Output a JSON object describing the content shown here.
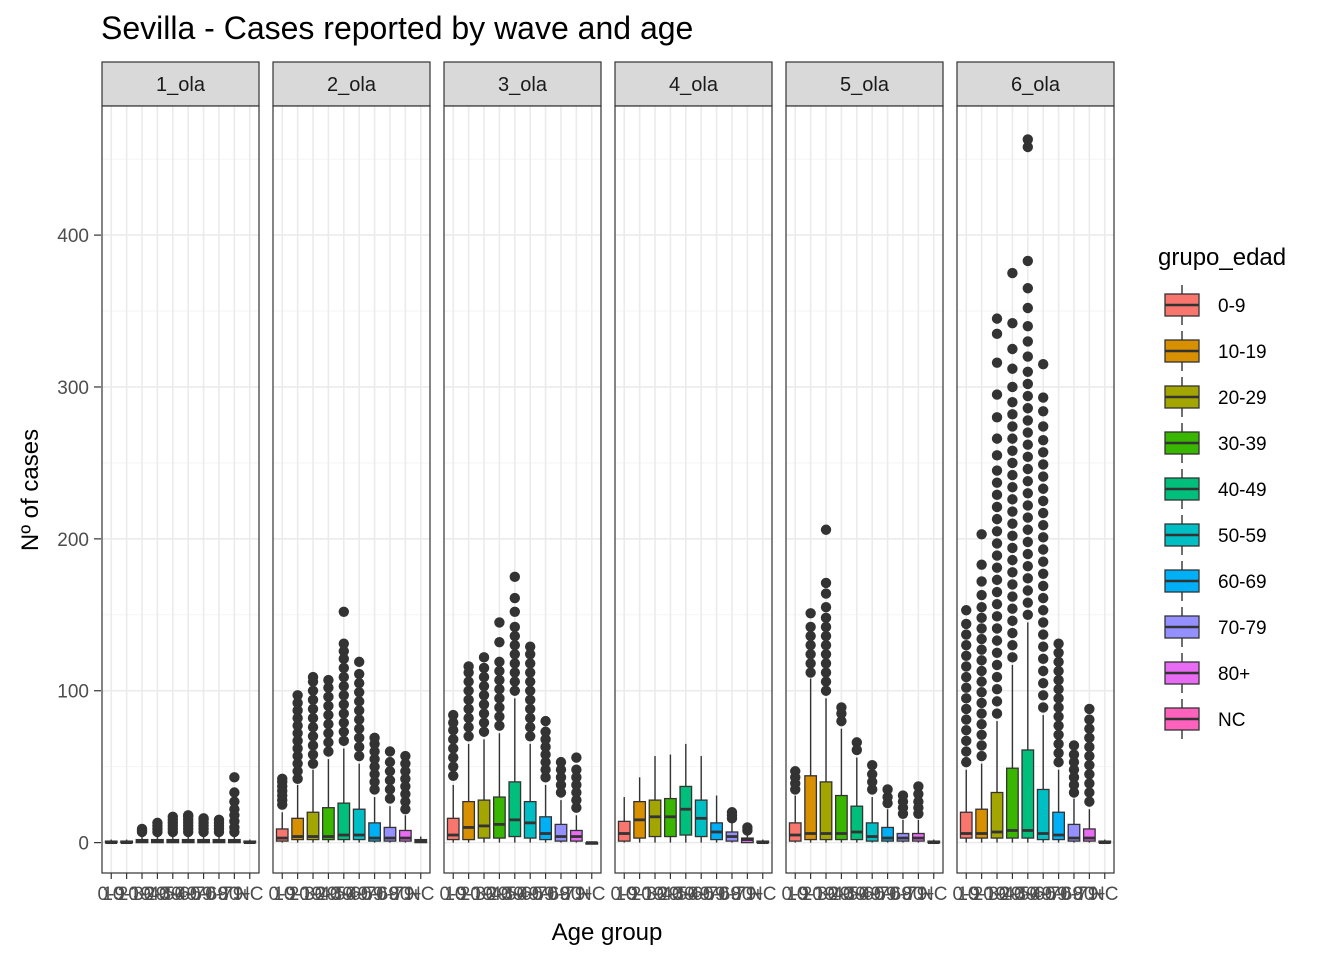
{
  "chart_data": {
    "type": "boxplot",
    "title": "Sevilla - Cases reported by wave and age",
    "xlabel": "Age group",
    "ylabel": "Nº of cases",
    "ylim": [
      -20,
      485
    ],
    "yticks": [
      0,
      100,
      200,
      300,
      400
    ],
    "grid": true,
    "legend_title": "grupo_edad",
    "legend_position": "right",
    "categories": [
      "0-9",
      "10-19",
      "20-29",
      "30-39",
      "40-49",
      "50-59",
      "60-69",
      "70-79",
      "80+",
      "NC"
    ],
    "colors": [
      "#F8766D",
      "#D89000",
      "#A3A500",
      "#39B600",
      "#00BF7D",
      "#00BFC4",
      "#00B0F6",
      "#9590FF",
      "#E76BF3",
      "#FF62BC"
    ],
    "panels": [
      {
        "name": "1_ola",
        "boxes": [
          {
            "q1": 0,
            "med": 0,
            "q3": 1,
            "whisk_lo": 0,
            "whisk_hi": 2,
            "outliers": []
          },
          {
            "q1": 0,
            "med": 0,
            "q3": 1,
            "whisk_lo": 0,
            "whisk_hi": 2,
            "outliers": []
          },
          {
            "q1": 0,
            "med": 1,
            "q3": 2,
            "whisk_lo": 0,
            "whisk_hi": 5,
            "outliers": [
              7,
              8,
              9
            ]
          },
          {
            "q1": 0,
            "med": 1,
            "q3": 2,
            "whisk_lo": 0,
            "whisk_hi": 5,
            "outliers": [
              7,
              9,
              11,
              13
            ]
          },
          {
            "q1": 0,
            "med": 1,
            "q3": 2,
            "whisk_lo": 0,
            "whisk_hi": 5,
            "outliers": [
              7,
              9,
              11,
              13,
              15,
              17
            ]
          },
          {
            "q1": 0,
            "med": 1,
            "q3": 2,
            "whisk_lo": 0,
            "whisk_hi": 5,
            "outliers": [
              7,
              9,
              11,
              13,
              15,
              17,
              18
            ]
          },
          {
            "q1": 0,
            "med": 1,
            "q3": 2,
            "whisk_lo": 0,
            "whisk_hi": 5,
            "outliers": [
              7,
              9,
              11,
              13,
              15,
              16
            ]
          },
          {
            "q1": 0,
            "med": 1,
            "q3": 2,
            "whisk_lo": 0,
            "whisk_hi": 5,
            "outliers": [
              7,
              9,
              11,
              13,
              15
            ]
          },
          {
            "q1": 0,
            "med": 1,
            "q3": 2,
            "whisk_lo": 0,
            "whisk_hi": 5,
            "outliers": [
              7,
              10,
              14,
              18,
              22,
              27,
              33,
              43
            ]
          },
          {
            "q1": 0,
            "med": 0,
            "q3": 1,
            "whisk_lo": 0,
            "whisk_hi": 2,
            "outliers": []
          }
        ]
      },
      {
        "name": "2_ola",
        "boxes": [
          {
            "q1": 1,
            "med": 3,
            "q3": 9,
            "whisk_lo": 0,
            "whisk_hi": 20,
            "outliers": [
              25,
              28,
              31,
              34,
              37,
              40,
              42
            ]
          },
          {
            "q1": 2,
            "med": 4,
            "q3": 16,
            "whisk_lo": 0,
            "whisk_hi": 38,
            "outliers": [
              42,
              47,
              52,
              57,
              62,
              67,
              72,
              77,
              82,
              87,
              92,
              97
            ]
          },
          {
            "q1": 2,
            "med": 4,
            "q3": 20,
            "whisk_lo": 0,
            "whisk_hi": 48,
            "outliers": [
              52,
              58,
              64,
              70,
              76,
              82,
              88,
              94,
              100,
              106,
              109
            ]
          },
          {
            "q1": 2,
            "med": 4,
            "q3": 23,
            "whisk_lo": 0,
            "whisk_hi": 55,
            "outliers": [
              60,
              66,
              72,
              78,
              84,
              90,
              96,
              102,
              107
            ]
          },
          {
            "q1": 2,
            "med": 5,
            "q3": 26,
            "whisk_lo": 0,
            "whisk_hi": 62,
            "outliers": [
              67,
              73,
              79,
              85,
              91,
              97,
              103,
              109,
              115,
              121,
              126,
              131,
              152
            ]
          },
          {
            "q1": 2,
            "med": 5,
            "q3": 22,
            "whisk_lo": 0,
            "whisk_hi": 52,
            "outliers": [
              57,
              63,
              69,
              75,
              81,
              87,
              93,
              99,
              105,
              111,
              119
            ]
          },
          {
            "q1": 1,
            "med": 3,
            "q3": 13,
            "whisk_lo": 0,
            "whisk_hi": 30,
            "outliers": [
              35,
              40,
              45,
              50,
              55,
              60,
              65,
              69
            ]
          },
          {
            "q1": 1,
            "med": 3,
            "q3": 10,
            "whisk_lo": 0,
            "whisk_hi": 24,
            "outliers": [
              29,
              35,
              41,
              47,
              53,
              60
            ]
          },
          {
            "q1": 1,
            "med": 3,
            "q3": 8,
            "whisk_lo": 0,
            "whisk_hi": 18,
            "outliers": [
              22,
              27,
              32,
              37,
              42,
              47,
              52,
              57
            ]
          },
          {
            "q1": 0,
            "med": 1,
            "q3": 2,
            "whisk_lo": 0,
            "whisk_hi": 4,
            "outliers": []
          }
        ]
      },
      {
        "name": "3_ola",
        "boxes": [
          {
            "q1": 2,
            "med": 5,
            "q3": 16,
            "whisk_lo": 0,
            "whisk_hi": 38,
            "outliers": [
              44,
              50,
              56,
              62,
              68,
              74,
              79,
              84
            ]
          },
          {
            "q1": 2,
            "med": 10,
            "q3": 27,
            "whisk_lo": 0,
            "whisk_hi": 65,
            "outliers": [
              70,
              76,
              82,
              88,
              94,
              100,
              106,
              112,
              116
            ]
          },
          {
            "q1": 3,
            "med": 11,
            "q3": 28,
            "whisk_lo": 0,
            "whisk_hi": 68,
            "outliers": [
              73,
              79,
              85,
              91,
              97,
              103,
              109,
              115,
              122
            ]
          },
          {
            "q1": 3,
            "med": 12,
            "q3": 30,
            "whisk_lo": 0,
            "whisk_hi": 72,
            "outliers": [
              77,
              83,
              89,
              95,
              101,
              107,
              113,
              119,
              132,
              145
            ]
          },
          {
            "q1": 4,
            "med": 15,
            "q3": 40,
            "whisk_lo": 0,
            "whisk_hi": 95,
            "outliers": [
              100,
              106,
              112,
              118,
              124,
              130,
              136,
              142,
              152,
              161,
              175
            ]
          },
          {
            "q1": 3,
            "med": 13,
            "q3": 27,
            "whisk_lo": 0,
            "whisk_hi": 65,
            "outliers": [
              70,
              76,
              82,
              88,
              94,
              100,
              106,
              112,
              118,
              124,
              129
            ]
          },
          {
            "q1": 2,
            "med": 6,
            "q3": 17,
            "whisk_lo": 0,
            "whisk_hi": 38,
            "outliers": [
              43,
              48,
              53,
              58,
              63,
              68,
              73,
              80
            ]
          },
          {
            "q1": 1,
            "med": 4,
            "q3": 12,
            "whisk_lo": 0,
            "whisk_hi": 28,
            "outliers": [
              33,
              38,
              43,
              48,
              53
            ]
          },
          {
            "q1": 1,
            "med": 4,
            "q3": 8,
            "whisk_lo": 0,
            "whisk_hi": 18,
            "outliers": [
              23,
              28,
              33,
              38,
              43,
              48,
              56
            ]
          },
          {
            "q1": 0,
            "med": 0,
            "q3": 0,
            "whisk_lo": 0,
            "whisk_hi": 0,
            "outliers": []
          }
        ]
      },
      {
        "name": "4_ola",
        "boxes": [
          {
            "q1": 1,
            "med": 6,
            "q3": 14,
            "whisk_lo": 0,
            "whisk_hi": 30,
            "outliers": []
          },
          {
            "q1": 3,
            "med": 15,
            "q3": 27,
            "whisk_lo": 0,
            "whisk_hi": 43,
            "outliers": []
          },
          {
            "q1": 4,
            "med": 17,
            "q3": 28,
            "whisk_lo": 0,
            "whisk_hi": 57,
            "outliers": []
          },
          {
            "q1": 4,
            "med": 17,
            "q3": 29,
            "whisk_lo": 0,
            "whisk_hi": 58,
            "outliers": []
          },
          {
            "q1": 5,
            "med": 22,
            "q3": 37,
            "whisk_lo": 0,
            "whisk_hi": 65,
            "outliers": []
          },
          {
            "q1": 4,
            "med": 16,
            "q3": 28,
            "whisk_lo": 0,
            "whisk_hi": 57,
            "outliers": []
          },
          {
            "q1": 2,
            "med": 7,
            "q3": 13,
            "whisk_lo": 0,
            "whisk_hi": 31,
            "outliers": []
          },
          {
            "q1": 1,
            "med": 4,
            "q3": 7,
            "whisk_lo": 0,
            "whisk_hi": 14,
            "outliers": [
              16,
              18,
              20
            ]
          },
          {
            "q1": 0,
            "med": 2,
            "q3": 3,
            "whisk_lo": 0,
            "whisk_hi": 6,
            "outliers": [
              8,
              10
            ]
          },
          {
            "q1": 0,
            "med": 0,
            "q3": 1,
            "whisk_lo": 0,
            "whisk_hi": 2,
            "outliers": []
          }
        ]
      },
      {
        "name": "5_ola",
        "boxes": [
          {
            "q1": 1,
            "med": 5,
            "q3": 13,
            "whisk_lo": 0,
            "whisk_hi": 31,
            "outliers": [
              35,
              39,
              43,
              47
            ]
          },
          {
            "q1": 2,
            "med": 6,
            "q3": 44,
            "whisk_lo": 0,
            "whisk_hi": 108,
            "outliers": [
              112,
              118,
              124,
              130,
              136,
              142,
              151
            ]
          },
          {
            "q1": 2,
            "med": 6,
            "q3": 40,
            "whisk_lo": 0,
            "whisk_hi": 95,
            "outliers": [
              100,
              106,
              112,
              118,
              124,
              130,
              136,
              142,
              148,
              155,
              164,
              171,
              206
            ]
          },
          {
            "q1": 2,
            "med": 6,
            "q3": 31,
            "whisk_lo": 0,
            "whisk_hi": 75,
            "outliers": [
              80,
              85,
              89
            ]
          },
          {
            "q1": 2,
            "med": 7,
            "q3": 24,
            "whisk_lo": 0,
            "whisk_hi": 56,
            "outliers": [
              61,
              66
            ]
          },
          {
            "q1": 1,
            "med": 4,
            "q3": 13,
            "whisk_lo": 0,
            "whisk_hi": 30,
            "outliers": [
              35,
              40,
              45,
              51
            ]
          },
          {
            "q1": 1,
            "med": 3,
            "q3": 10,
            "whisk_lo": 0,
            "whisk_hi": 22,
            "outliers": [
              26,
              30,
              35
            ]
          },
          {
            "q1": 1,
            "med": 3,
            "q3": 6,
            "whisk_lo": 0,
            "whisk_hi": 15,
            "outliers": [
              19,
              23,
              27,
              31
            ]
          },
          {
            "q1": 1,
            "med": 3,
            "q3": 6,
            "whisk_lo": 0,
            "whisk_hi": 15,
            "outliers": [
              19,
              23,
              27,
              32,
              37
            ]
          },
          {
            "q1": 0,
            "med": 0,
            "q3": 1,
            "whisk_lo": 0,
            "whisk_hi": 2,
            "outliers": []
          }
        ]
      },
      {
        "name": "6_ola",
        "boxes": [
          {
            "q1": 3,
            "med": 6,
            "q3": 20,
            "whisk_lo": 0,
            "whisk_hi": 48,
            "outliers": [
              53,
              60,
              67,
              74,
              81,
              88,
              95,
              102,
              109,
              116,
              123,
              130,
              137,
              144,
              153
            ]
          },
          {
            "q1": 3,
            "med": 6,
            "q3": 22,
            "whisk_lo": 0,
            "whisk_hi": 52,
            "outliers": [
              57,
              64,
              71,
              78,
              85,
              92,
              99,
              106,
              113,
              120,
              127,
              134,
              141,
              148,
              155,
              163,
              172,
              183,
              203
            ]
          },
          {
            "q1": 3,
            "med": 7,
            "q3": 33,
            "whisk_lo": 0,
            "whisk_hi": 80,
            "outliers": [
              85,
              93,
              101,
              109,
              117,
              125,
              133,
              141,
              149,
              157,
              165,
              173,
              181,
              189,
              197,
              205,
              213,
              221,
              229,
              237,
              245,
              255,
              266,
              280,
              295,
              316,
              335,
              345
            ]
          },
          {
            "q1": 3,
            "med": 8,
            "q3": 49,
            "whisk_lo": 0,
            "whisk_hi": 117,
            "outliers": [
              122,
              130,
              138,
              146,
              154,
              162,
              170,
              178,
              186,
              194,
              202,
              210,
              218,
              226,
              234,
              242,
              250,
              258,
              266,
              274,
              282,
              290,
              300,
              312,
              325,
              342,
              375
            ]
          },
          {
            "q1": 3,
            "med": 8,
            "q3": 61,
            "whisk_lo": 0,
            "whisk_hi": 145,
            "outliers": [
              150,
              158,
              166,
              174,
              182,
              190,
              198,
              206,
              214,
              222,
              230,
              238,
              246,
              254,
              262,
              270,
              278,
              286,
              294,
              302,
              310,
              320,
              330,
              340,
              352,
              365,
              383,
              458,
              463
            ]
          },
          {
            "q1": 2,
            "med": 6,
            "q3": 35,
            "whisk_lo": 0,
            "whisk_hi": 84,
            "outliers": [
              89,
              97,
              105,
              113,
              121,
              129,
              137,
              145,
              153,
              161,
              169,
              177,
              185,
              193,
              201,
              209,
              217,
              225,
              233,
              241,
              249,
              257,
              265,
              274,
              284,
              293,
              315
            ]
          },
          {
            "q1": 2,
            "med": 5,
            "q3": 20,
            "whisk_lo": 0,
            "whisk_hi": 48,
            "outliers": [
              53,
              59,
              65,
              71,
              77,
              83,
              89,
              95,
              101,
              107,
              113,
              119,
              125,
              131
            ]
          },
          {
            "q1": 1,
            "med": 3,
            "q3": 12,
            "whisk_lo": 0,
            "whisk_hi": 29,
            "outliers": [
              33,
              38,
              43,
              48,
              53,
              58,
              64
            ]
          },
          {
            "q1": 1,
            "med": 3,
            "q3": 9,
            "whisk_lo": 0,
            "whisk_hi": 22,
            "outliers": [
              27,
              33,
              39,
              45,
              51,
              57,
              63,
              69,
              75,
              81,
              88
            ]
          },
          {
            "q1": 0,
            "med": 0,
            "q3": 1,
            "whisk_lo": 0,
            "whisk_hi": 2,
            "outliers": []
          }
        ]
      }
    ]
  }
}
